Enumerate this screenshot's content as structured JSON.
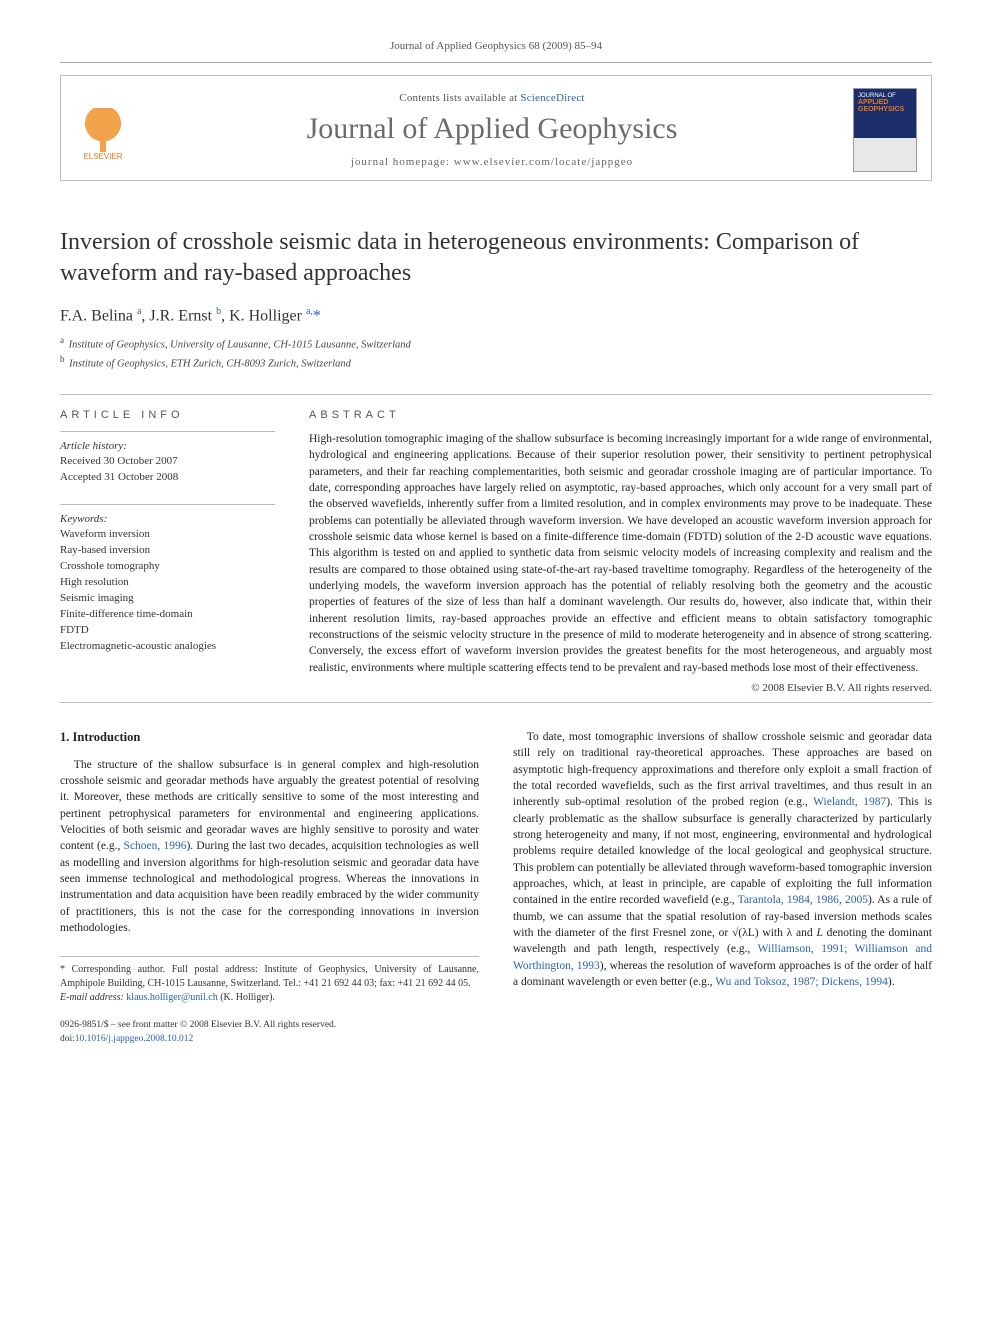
{
  "running_head": "Journal of Applied Geophysics 68 (2009) 85–94",
  "header": {
    "contents_prefix": "Contents lists available at ",
    "contents_link": "ScienceDirect",
    "journal_name": "Journal of Applied Geophysics",
    "homepage_label": "journal homepage: www.elsevier.com/locate/jappgeo",
    "elsevier_label": "ELSEVIER",
    "cover_line1": "JOURNAL OF",
    "cover_line2": "APPLIED",
    "cover_line3": "GEOPHYSICS"
  },
  "title": "Inversion of crosshole seismic data in heterogeneous environments: Comparison of waveform and ray-based approaches",
  "authors_html": "F.A. Belina <sup class=\"affsup\">a</sup>, J.R. Ernst <sup class=\"affsup\">b</sup>, K. Holliger <sup class=\"affsup\">a,</sup><span class=\"corr\">*</span>",
  "affiliations": [
    {
      "key": "a",
      "text": "Institute of Geophysics, University of Lausanne, CH-1015 Lausanne, Switzerland"
    },
    {
      "key": "b",
      "text": "Institute of Geophysics, ETH Zurich, CH-8093 Zurich, Switzerland"
    }
  ],
  "article_info": {
    "heading": "ARTICLE INFO",
    "history_heading": "Article history:",
    "received": "Received 30 October 2007",
    "accepted": "Accepted 31 October 2008",
    "keywords_heading": "Keywords:",
    "keywords": [
      "Waveform inversion",
      "Ray-based inversion",
      "Crosshole tomography",
      "High resolution",
      "Seismic imaging",
      "Finite-difference time-domain",
      "FDTD",
      "Electromagnetic-acoustic analogies"
    ]
  },
  "abstract": {
    "heading": "ABSTRACT",
    "body": "High-resolution tomographic imaging of the shallow subsurface is becoming increasingly important for a wide range of environmental, hydrological and engineering applications. Because of their superior resolution power, their sensitivity to pertinent petrophysical parameters, and their far reaching complementarities, both seismic and georadar crosshole imaging are of particular importance. To date, corresponding approaches have largely relied on asymptotic, ray-based approaches, which only account for a very small part of the observed wavefields, inherently suffer from a limited resolution, and in complex environments may prove to be inadequate. These problems can potentially be alleviated through waveform inversion. We have developed an acoustic waveform inversion approach for crosshole seismic data whose kernel is based on a finite-difference time-domain (FDTD) solution of the 2-D acoustic wave equations. This algorithm is tested on and applied to synthetic data from seismic velocity models of increasing complexity and realism and the results are compared to those obtained using state-of-the-art ray-based traveltime tomography. Regardless of the heterogeneity of the underlying models, the waveform inversion approach has the potential of reliably resolving both the geometry and the acoustic properties of features of the size of less than half a dominant wavelength. Our results do, however, also indicate that, within their inherent resolution limits, ray-based approaches provide an effective and efficient means to obtain satisfactory tomographic reconstructions of the seismic velocity structure in the presence of mild to moderate heterogeneity and in absence of strong scattering. Conversely, the excess effort of waveform inversion provides the greatest benefits for the most heterogeneous, and arguably most realistic, environments where multiple scattering effects tend to be prevalent and ray-based methods lose most of their effectiveness.",
    "copyright": "© 2008 Elsevier B.V. All rights reserved."
  },
  "section1": {
    "title": "1. Introduction",
    "col1_html": "The structure of the shallow subsurface is in general complex and high-resolution crosshole seismic and georadar methods have arguably the greatest potential of resolving it. Moreover, these methods are critically sensitive to some of the most interesting and pertinent petrophysical parameters for environmental and engineering applications. Velocities of both seismic and georadar waves are highly sensitive to porosity and water content (e.g., <span class=\"cite\">Schoen, 1996</span>). During the last two decades, acquisition technologies as well as modelling and inversion algorithms for high-resolution seismic and georadar data have seen immense technological and methodological progress. Whereas the innovations in instrumentation and data acquisition have been readily embraced by the wider community of practitioners, this is not the case for the corresponding innovations in inversion methodologies.",
    "col2_html": "To date, most tomographic inversions of shallow crosshole seismic and georadar data still rely on traditional ray-theoretical approaches. These approaches are based on asymptotic high-frequency approximations and therefore only exploit a small fraction of the total recorded wavefields, such as the first arrival traveltimes, and thus result in an inherently sub-optimal resolution of the probed region (e.g., <span class=\"cite\">Wielandt, 1987</span>). This is clearly problematic as the shallow subsurface is generally characterized by particularly strong heterogeneity and many, if not most, engineering, environmental and hydrological problems require detailed knowledge of the local geological and geophysical structure. This problem can potentially be alleviated through waveform-based tomographic inversion approaches, which, at least in principle, are capable of exploiting the full information contained in the entire recorded wavefield (e.g., <span class=\"cite\">Tarantola, 1984, 1986, 2005</span>). As a rule of thumb, we can assume that the spatial resolution of ray-based inversion methods scales with the diameter of the first Fresnel zone, or <span class=\"sqrt\">√(λL)</span> with λ and <i>L</i> denoting the dominant wavelength and path length, respectively (e.g., <span class=\"cite\">Williamson, 1991; Williamson and Worthington, 1993</span>), whereas the resolution of waveform approaches is of the order of half a dominant wavelength or even better (e.g., <span class=\"cite\">Wu and Toksoz, 1987; Dickens, 1994</span>)."
  },
  "footnote": {
    "corr": "* Corresponding author. Full postal address: Institute of Geophysics, University of Lausanne, Amphipole Building, CH-1015 Lausanne, Switzerland. Tel.: +41 21 692 44 03; fax: +41 21 692 44 05.",
    "email_label": "E-mail address:",
    "email": "klaus.holliger@unil.ch",
    "email_paren": "(K. Holliger)."
  },
  "page_foot": {
    "issn_line": "0926-9851/$ – see front matter © 2008 Elsevier B.V. All rights reserved.",
    "doi_label": "doi:",
    "doi": "10.1016/j.jappgeo.2008.10.012"
  },
  "colors": {
    "link": "#2a63b0",
    "rule": "#bbbbbb",
    "orange": "#e67817",
    "text": "#222222"
  }
}
